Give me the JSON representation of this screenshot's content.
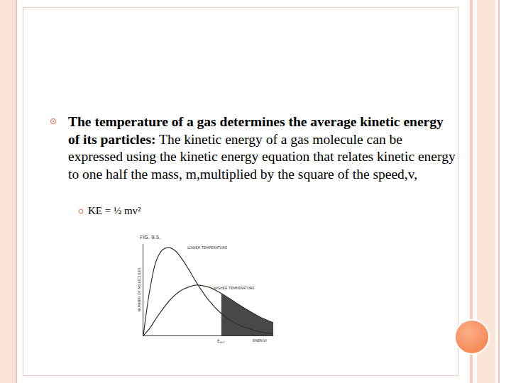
{
  "slide": {
    "bullet": {
      "heading": "The temperature of a gas determines the average kinetic energy of its particles:",
      "text": "The kinetic energy of a gas molecule can be expressed using the kinetic energy equation that relates kinetic energy to one half the mass, m,multiplied by the square of the speed,v,"
    },
    "sub_bullet": "KE = ½ mv²"
  },
  "chart_data": {
    "type": "line",
    "title": "FIG. 9.5.",
    "y_label": "NUMBER OF MOLECULES",
    "x_label": "ENERGY",
    "x": [
      0,
      0.5,
      1,
      1.5,
      2,
      2.5,
      3,
      3.5,
      4,
      5,
      6,
      7,
      8,
      9,
      10
    ],
    "series": [
      {
        "name": "LOWER TEMPERATURE",
        "color": "#333333",
        "line_style": "solid",
        "label_at": [
          3.3,
          9.6
        ],
        "values": [
          0,
          5,
          8.2,
          9.4,
          9.6,
          9.2,
          8.3,
          7.2,
          6,
          3.9,
          2.4,
          1.4,
          0.8,
          0.4,
          0.2
        ]
      },
      {
        "name": "HIGHER TEMPERATURE",
        "color": "#333333",
        "line_style": "solid",
        "label_at": [
          5.3,
          5.2
        ],
        "shaded": true,
        "values": [
          0,
          0.8,
          1.9,
          2.9,
          3.8,
          4.5,
          5.0,
          5.3,
          5.5,
          5.3,
          4.6,
          3.7,
          2.8,
          2.0,
          1.4
        ]
      }
    ],
    "threshold": {
      "value": 6,
      "label": "E",
      "subscript": "act"
    },
    "xlim": [
      0,
      10
    ],
    "ylim": [
      0,
      10
    ],
    "xticks": [],
    "yticks": [],
    "tick_labels": false,
    "grid": false
  }
}
